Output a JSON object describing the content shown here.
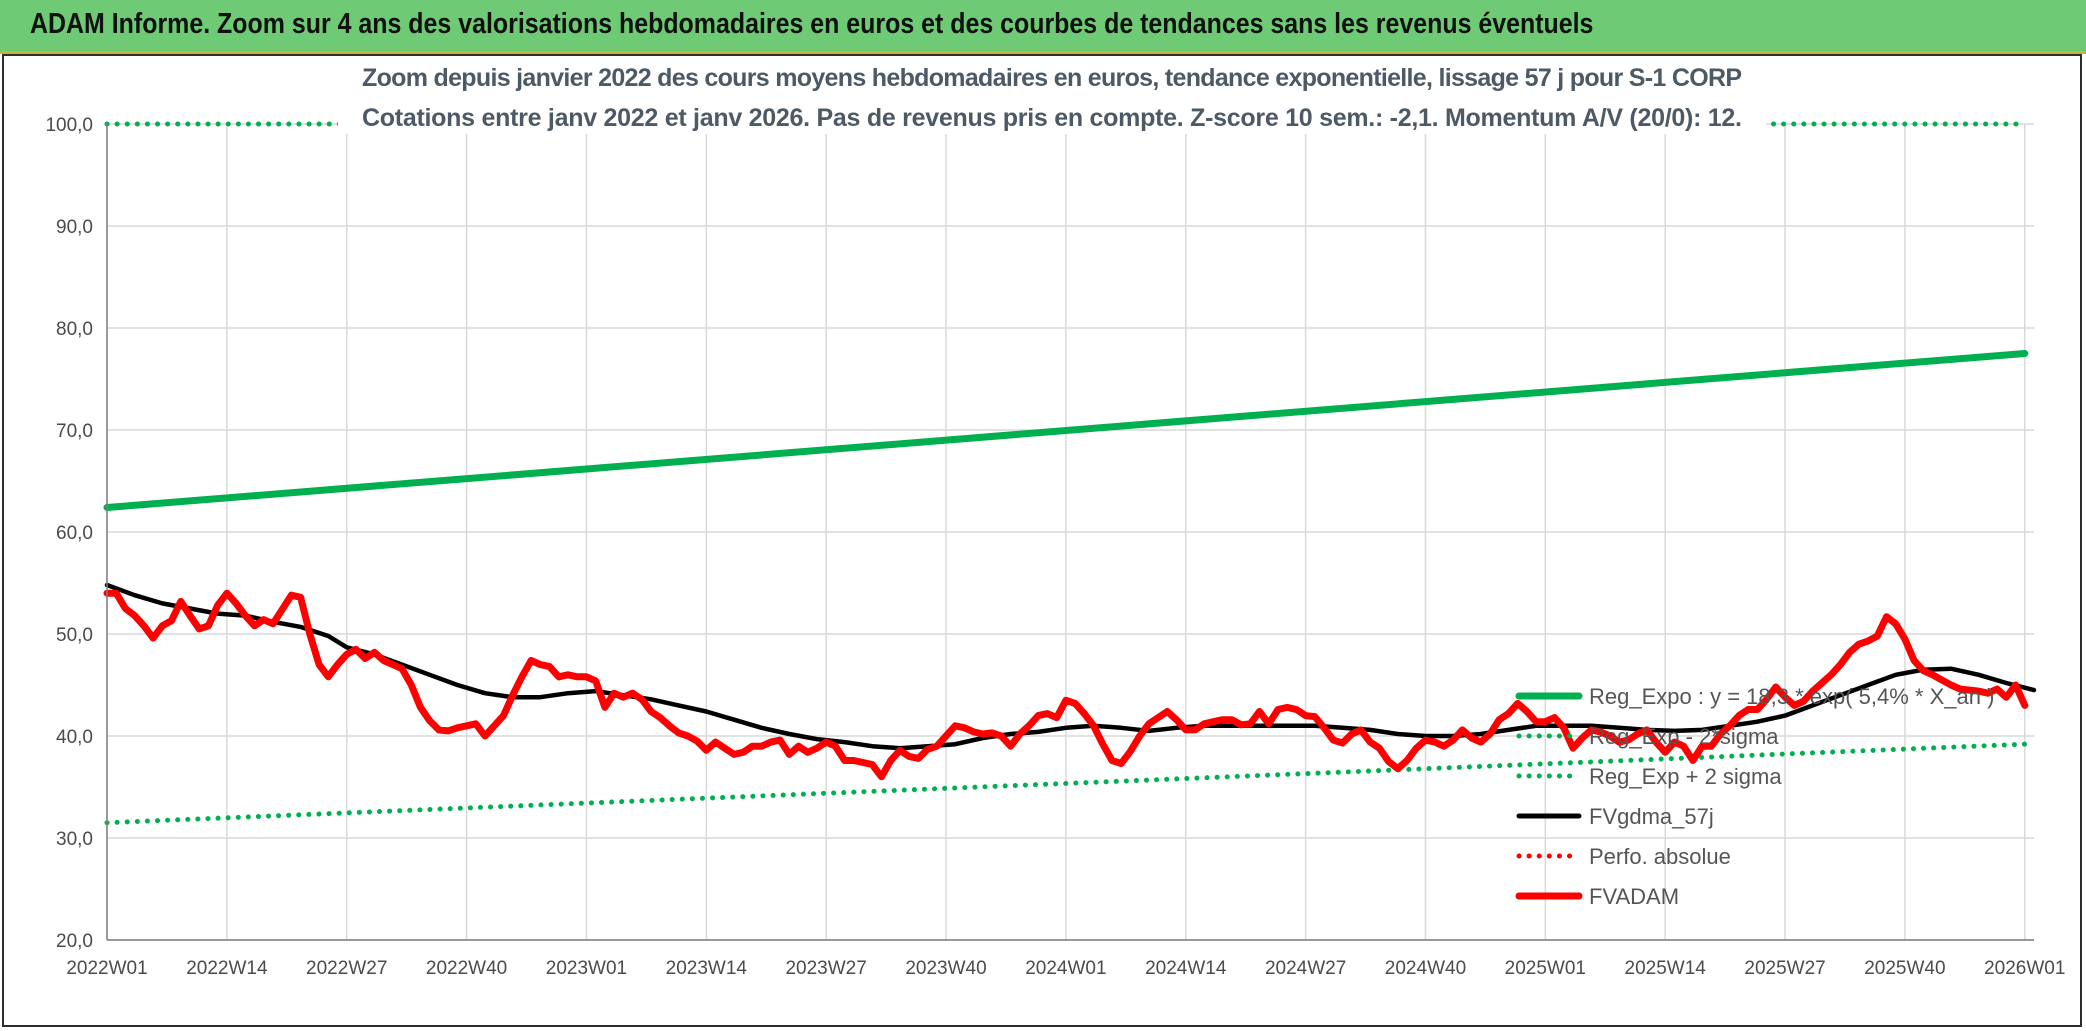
{
  "header": {
    "title": "ADAM Informe. Zoom sur 4 ans des valorisations hebdomadaires en euros et des courbes de tendances sans les revenus éventuels"
  },
  "colors": {
    "banner": "#6fca75",
    "green": "#00b050",
    "red": "#ff0000",
    "black": "#000000",
    "grid": "#d9d9d9"
  },
  "chart_data": {
    "type": "line",
    "title_lines": [
      "Zoom depuis janvier 2022 des cours moyens hebdomadaires en euros, tendance exponentielle, lissage 57 j pour S-1 CORP",
      "Cotations entre janv 2022 et janv 2026. Pas de revenus pris en compte. Z-score 10 sem.: -2,1. Momentum A/V (20/0): 12."
    ],
    "ylim": [
      20,
      100
    ],
    "yticks": [
      "20,0",
      "30,0",
      "40,0",
      "50,0",
      "60,0",
      "70,0",
      "80,0",
      "90,0",
      "100,0"
    ],
    "xlim": [
      0,
      209
    ],
    "xticks": [
      {
        "pos": 0,
        "label": "2022W01"
      },
      {
        "pos": 13,
        "label": "2022W14"
      },
      {
        "pos": 26,
        "label": "2022W27"
      },
      {
        "pos": 39,
        "label": "2022W40"
      },
      {
        "pos": 52,
        "label": "2023W01"
      },
      {
        "pos": 65,
        "label": "2023W14"
      },
      {
        "pos": 78,
        "label": "2023W27"
      },
      {
        "pos": 91,
        "label": "2023W40"
      },
      {
        "pos": 104,
        "label": "2024W01"
      },
      {
        "pos": 117,
        "label": "2024W14"
      },
      {
        "pos": 130,
        "label": "2024W27"
      },
      {
        "pos": 143,
        "label": "2024W40"
      },
      {
        "pos": 156,
        "label": "2025W01"
      },
      {
        "pos": 169,
        "label": "2025W14"
      },
      {
        "pos": 182,
        "label": "2025W27"
      },
      {
        "pos": 195,
        "label": "2025W40"
      },
      {
        "pos": 208,
        "label": "2026W01"
      }
    ],
    "legend": [
      {
        "key": "reg_expo",
        "label": "Reg_Expo : y = 18,3 * exp( 5,4% *  X_an )",
        "style": "solid",
        "color": "#00b050"
      },
      {
        "key": "minus2",
        "label": "Reg_Exp - 2*sigma",
        "style": "dotted",
        "color": "#00b050"
      },
      {
        "key": "plus2",
        "label": "Reg_Exp + 2 sigma",
        "style": "dotted",
        "color": "#00b050"
      },
      {
        "key": "fvgdma",
        "label": "FVgdma_57j",
        "style": "solid",
        "color": "#000000"
      },
      {
        "key": "perfo",
        "label": "Perfo. absolue",
        "style": "dotted",
        "color": "#ff0000"
      },
      {
        "key": "fvadam",
        "label": "FVADAM",
        "style": "solid",
        "color": "#ff0000"
      }
    ],
    "series": [
      {
        "name": "Reg_Expo",
        "kind": "linear",
        "from": [
          0,
          62.4
        ],
        "to": [
          208,
          77.5
        ]
      },
      {
        "name": "Reg_Exp - 2*sigma",
        "kind": "linear",
        "from": [
          0,
          31.5
        ],
        "to": [
          208,
          39.2
        ]
      },
      {
        "name": "Reg_Exp + 2 sigma",
        "kind": "hline",
        "value": 100
      },
      {
        "name": "FVgdma_57j",
        "kind": "points",
        "points": [
          [
            0,
            54.8
          ],
          [
            3,
            53.8
          ],
          [
            6,
            53
          ],
          [
            9,
            52.5
          ],
          [
            12,
            52
          ],
          [
            15,
            51.8
          ],
          [
            18,
            51.2
          ],
          [
            21,
            50.7
          ],
          [
            24,
            49.8
          ],
          [
            26,
            48.7
          ],
          [
            29,
            48
          ],
          [
            32,
            47
          ],
          [
            35,
            46
          ],
          [
            38,
            45
          ],
          [
            41,
            44.2
          ],
          [
            44,
            43.8
          ],
          [
            47,
            43.8
          ],
          [
            50,
            44.2
          ],
          [
            53,
            44.4
          ],
          [
            56,
            44
          ],
          [
            59,
            43.6
          ],
          [
            62,
            43
          ],
          [
            65,
            42.4
          ],
          [
            68,
            41.6
          ],
          [
            71,
            40.8
          ],
          [
            74,
            40.2
          ],
          [
            77,
            39.7
          ],
          [
            80,
            39.4
          ],
          [
            83,
            39
          ],
          [
            86,
            38.8
          ],
          [
            89,
            39
          ],
          [
            92,
            39.2
          ],
          [
            95,
            39.8
          ],
          [
            98,
            40.2
          ],
          [
            101,
            40.4
          ],
          [
            104,
            40.8
          ],
          [
            107,
            41
          ],
          [
            110,
            40.8
          ],
          [
            113,
            40.5
          ],
          [
            116,
            40.8
          ],
          [
            119,
            41
          ],
          [
            122,
            41
          ],
          [
            125,
            41
          ],
          [
            128,
            41
          ],
          [
            131,
            41
          ],
          [
            134,
            40.8
          ],
          [
            137,
            40.6
          ],
          [
            140,
            40.2
          ],
          [
            143,
            40
          ],
          [
            146,
            40
          ],
          [
            149,
            40.2
          ],
          [
            152,
            40.6
          ],
          [
            155,
            41
          ],
          [
            158,
            41
          ],
          [
            161,
            41
          ],
          [
            164,
            40.8
          ],
          [
            167,
            40.6
          ],
          [
            170,
            40.5
          ],
          [
            173,
            40.6
          ],
          [
            176,
            41
          ],
          [
            179,
            41.4
          ],
          [
            182,
            42
          ],
          [
            185,
            43
          ],
          [
            188,
            44
          ],
          [
            191,
            45
          ],
          [
            194,
            46
          ],
          [
            197,
            46.5
          ],
          [
            200,
            46.6
          ],
          [
            203,
            46
          ],
          [
            206,
            45.2
          ],
          [
            209,
            44.5
          ]
        ]
      },
      {
        "name": "FVADAM",
        "kind": "points",
        "points": [
          [
            0,
            54
          ],
          [
            1,
            54
          ],
          [
            2,
            52.5
          ],
          [
            3,
            51.8
          ],
          [
            4,
            50.8
          ],
          [
            5,
            49.6
          ],
          [
            6,
            50.8
          ],
          [
            7,
            51.3
          ],
          [
            8,
            53.2
          ],
          [
            9,
            51.8
          ],
          [
            10,
            50.5
          ],
          [
            11,
            50.8
          ],
          [
            12,
            52.8
          ],
          [
            13,
            54
          ],
          [
            14,
            53
          ],
          [
            15,
            51.8
          ],
          [
            16,
            50.8
          ],
          [
            17,
            51.4
          ],
          [
            18,
            51
          ],
          [
            19,
            52.4
          ],
          [
            20,
            53.8
          ],
          [
            21,
            53.6
          ],
          [
            22,
            50
          ],
          [
            23,
            47
          ],
          [
            24,
            45.8
          ],
          [
            25,
            47
          ],
          [
            26,
            48
          ],
          [
            27,
            48.5
          ],
          [
            28,
            47.6
          ],
          [
            29,
            48.2
          ],
          [
            30,
            47.4
          ],
          [
            31,
            47
          ],
          [
            32,
            46.6
          ],
          [
            33,
            45
          ],
          [
            34,
            42.8
          ],
          [
            35,
            41.5
          ],
          [
            36,
            40.6
          ],
          [
            37,
            40.5
          ],
          [
            38,
            40.8
          ],
          [
            39,
            41
          ],
          [
            40,
            41.2
          ],
          [
            41,
            40
          ],
          [
            42,
            41
          ],
          [
            43,
            42
          ],
          [
            44,
            44
          ],
          [
            45,
            45.8
          ],
          [
            46,
            47.4
          ],
          [
            47,
            47
          ],
          [
            48,
            46.8
          ],
          [
            49,
            45.8
          ],
          [
            50,
            46
          ],
          [
            51,
            45.8
          ],
          [
            52,
            45.8
          ],
          [
            53,
            45.4
          ],
          [
            54,
            42.8
          ],
          [
            55,
            44.2
          ],
          [
            56,
            43.8
          ],
          [
            57,
            44.2
          ],
          [
            58,
            43.6
          ],
          [
            59,
            42.4
          ],
          [
            60,
            41.8
          ],
          [
            61,
            41
          ],
          [
            62,
            40.3
          ],
          [
            63,
            40
          ],
          [
            64,
            39.5
          ],
          [
            65,
            38.6
          ],
          [
            66,
            39.4
          ],
          [
            67,
            38.8
          ],
          [
            68,
            38.2
          ],
          [
            69,
            38.4
          ],
          [
            70,
            39
          ],
          [
            71,
            39
          ],
          [
            72,
            39.4
          ],
          [
            73,
            39.6
          ],
          [
            74,
            38.2
          ],
          [
            75,
            39
          ],
          [
            76,
            38.4
          ],
          [
            77,
            38.8
          ],
          [
            78,
            39.4
          ],
          [
            79,
            39
          ],
          [
            80,
            37.6
          ],
          [
            81,
            37.6
          ],
          [
            82,
            37.4
          ],
          [
            83,
            37.2
          ],
          [
            84,
            36
          ],
          [
            85,
            37.6
          ],
          [
            86,
            38.6
          ],
          [
            87,
            38
          ],
          [
            88,
            37.8
          ],
          [
            89,
            38.7
          ],
          [
            90,
            39
          ],
          [
            91,
            40
          ],
          [
            92,
            41
          ],
          [
            93,
            40.8
          ],
          [
            94,
            40.4
          ],
          [
            95,
            40.2
          ],
          [
            96,
            40.3
          ],
          [
            97,
            40
          ],
          [
            98,
            39
          ],
          [
            99,
            40.2
          ],
          [
            100,
            41
          ],
          [
            101,
            42
          ],
          [
            102,
            42.2
          ],
          [
            103,
            41.8
          ],
          [
            104,
            43.5
          ],
          [
            105,
            43.2
          ],
          [
            106,
            42.2
          ],
          [
            107,
            41
          ],
          [
            108,
            39.2
          ],
          [
            109,
            37.6
          ],
          [
            110,
            37.3
          ],
          [
            111,
            38.5
          ],
          [
            112,
            40
          ],
          [
            113,
            41.2
          ],
          [
            114,
            41.8
          ],
          [
            115,
            42.4
          ],
          [
            116,
            41.6
          ],
          [
            117,
            40.6
          ],
          [
            118,
            40.6
          ],
          [
            119,
            41.2
          ],
          [
            120,
            41.4
          ],
          [
            121,
            41.6
          ],
          [
            122,
            41.6
          ],
          [
            123,
            41.1
          ],
          [
            124,
            41.2
          ],
          [
            125,
            42.4
          ],
          [
            126,
            41.2
          ],
          [
            127,
            42.6
          ],
          [
            128,
            42.8
          ],
          [
            129,
            42.6
          ],
          [
            130,
            42
          ],
          [
            131,
            41.9
          ],
          [
            132,
            40.8
          ],
          [
            133,
            39.6
          ],
          [
            134,
            39.3
          ],
          [
            135,
            40.2
          ],
          [
            136,
            40.6
          ],
          [
            137,
            39.4
          ],
          [
            138,
            38.8
          ],
          [
            139,
            37.5
          ],
          [
            140,
            36.8
          ],
          [
            141,
            37.6
          ],
          [
            142,
            38.8
          ],
          [
            143,
            39.6
          ],
          [
            144,
            39.4
          ],
          [
            145,
            39
          ],
          [
            146,
            39.6
          ],
          [
            147,
            40.6
          ],
          [
            148,
            39.8
          ],
          [
            149,
            39.4
          ],
          [
            150,
            40.2
          ],
          [
            151,
            41.6
          ],
          [
            152,
            42.2
          ],
          [
            153,
            43.2
          ],
          [
            154,
            42.4
          ],
          [
            155,
            41.4
          ],
          [
            156,
            41.4
          ],
          [
            157,
            41.8
          ],
          [
            158,
            40.8
          ],
          [
            159,
            38.8
          ],
          [
            160,
            39.8
          ],
          [
            161,
            40.6
          ],
          [
            162,
            40.4
          ],
          [
            163,
            40
          ],
          [
            164,
            39.4
          ],
          [
            165,
            39.6
          ],
          [
            166,
            40.2
          ],
          [
            167,
            40.6
          ],
          [
            168,
            39.4
          ],
          [
            169,
            38.4
          ],
          [
            170,
            39.4
          ],
          [
            171,
            39
          ],
          [
            172,
            37.6
          ],
          [
            173,
            39
          ],
          [
            174,
            39
          ],
          [
            175,
            40.2
          ],
          [
            176,
            41
          ],
          [
            177,
            42
          ],
          [
            178,
            42.6
          ],
          [
            179,
            42.6
          ],
          [
            180,
            43.6
          ],
          [
            181,
            44.8
          ],
          [
            182,
            43.8
          ],
          [
            183,
            43
          ],
          [
            184,
            43.4
          ],
          [
            185,
            44.4
          ],
          [
            186,
            45.2
          ],
          [
            187,
            46
          ],
          [
            188,
            47
          ],
          [
            189,
            48.2
          ],
          [
            190,
            49
          ],
          [
            191,
            49.3
          ],
          [
            192,
            49.8
          ],
          [
            193,
            51.7
          ],
          [
            194,
            51
          ],
          [
            195,
            49.5
          ],
          [
            196,
            47.4
          ],
          [
            197,
            46.4
          ],
          [
            198,
            46
          ],
          [
            199,
            45.5
          ],
          [
            200,
            45
          ],
          [
            201,
            44.6
          ],
          [
            202,
            44.5
          ],
          [
            203,
            44.4
          ],
          [
            204,
            44.2
          ],
          [
            205,
            44.6
          ],
          [
            206,
            43.8
          ],
          [
            207,
            45
          ],
          [
            208,
            43
          ]
        ]
      }
    ]
  }
}
